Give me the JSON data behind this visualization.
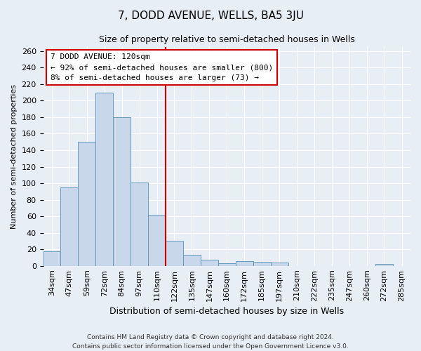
{
  "title": "7, DODD AVENUE, WELLS, BA5 3JU",
  "subtitle": "Size of property relative to semi-detached houses in Wells",
  "xlabel": "Distribution of semi-detached houses by size in Wells",
  "ylabel": "Number of semi-detached properties",
  "bar_labels": [
    "34sqm",
    "47sqm",
    "59sqm",
    "72sqm",
    "84sqm",
    "97sqm",
    "110sqm",
    "122sqm",
    "135sqm",
    "147sqm",
    "160sqm",
    "172sqm",
    "185sqm",
    "197sqm",
    "210sqm",
    "222sqm",
    "235sqm",
    "247sqm",
    "260sqm",
    "272sqm",
    "285sqm"
  ],
  "bar_values": [
    18,
    95,
    150,
    210,
    180,
    101,
    62,
    30,
    13,
    7,
    3,
    6,
    5,
    4,
    0,
    0,
    0,
    0,
    0,
    2,
    0
  ],
  "bar_color": "#c8d8ea",
  "bar_edge_color": "#6699bb",
  "vline_index": 7,
  "vline_color": "#cc0000",
  "annotation_title": "7 DODD AVENUE: 120sqm",
  "annotation_line1": "← 92% of semi-detached houses are smaller (800)",
  "annotation_line2": "8% of semi-detached houses are larger (73) →",
  "annotation_box_edgecolor": "#cc0000",
  "ylim": [
    0,
    265
  ],
  "yticks": [
    0,
    20,
    40,
    60,
    80,
    100,
    120,
    140,
    160,
    180,
    200,
    220,
    240,
    260
  ],
  "footer_line1": "Contains HM Land Registry data © Crown copyright and database right 2024.",
  "footer_line2": "Contains public sector information licensed under the Open Government Licence v3.0.",
  "bg_color": "#e8eef5",
  "grid_color": "#ffffff",
  "title_fontsize": 11,
  "subtitle_fontsize": 9,
  "xlabel_fontsize": 9,
  "ylabel_fontsize": 8,
  "tick_fontsize": 8,
  "annotation_fontsize": 8,
  "footer_fontsize": 6.5
}
